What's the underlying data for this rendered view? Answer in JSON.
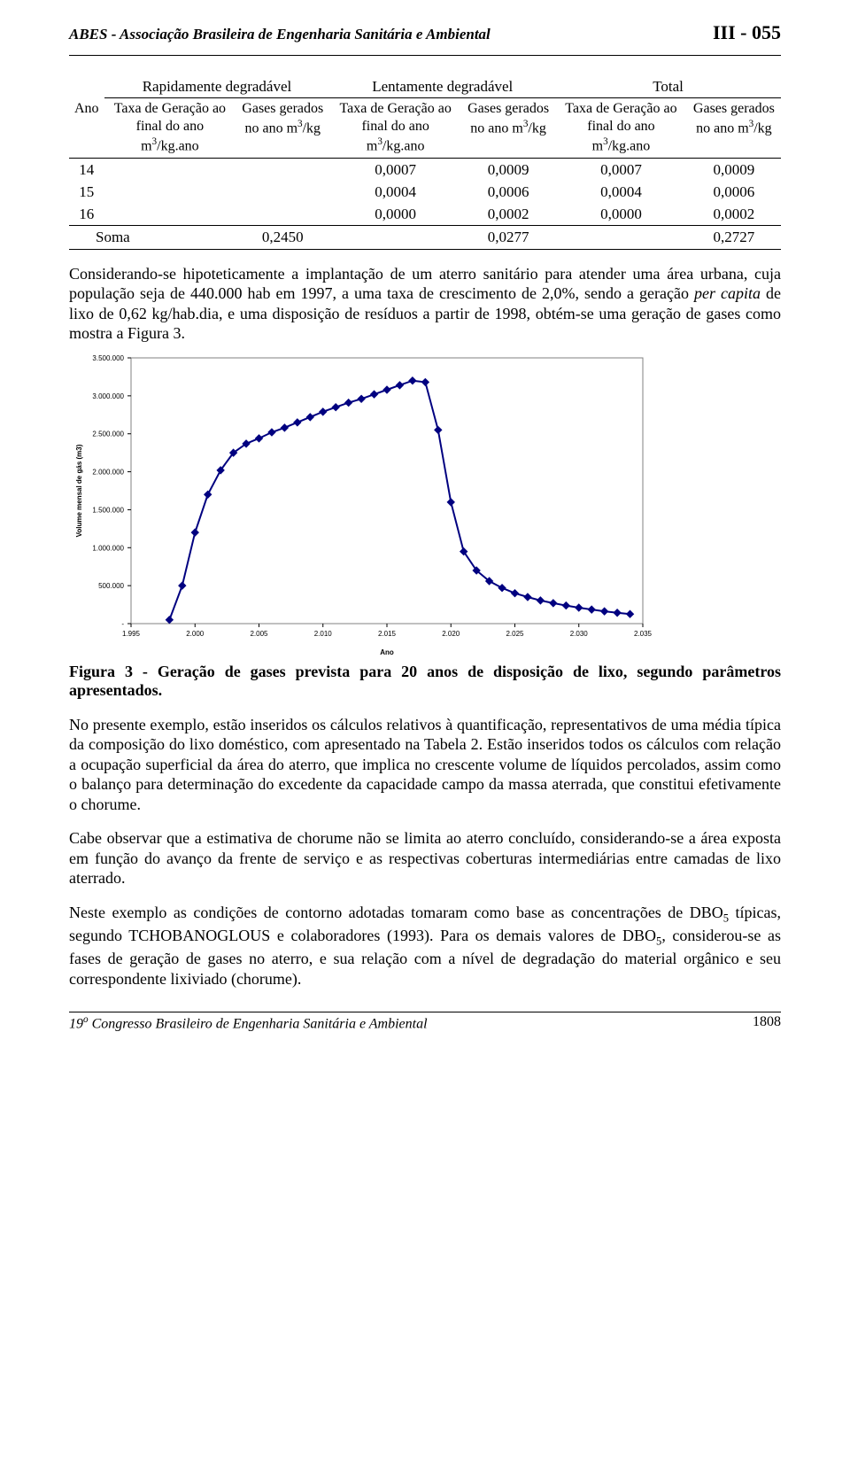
{
  "header": {
    "left": "ABES - Associação Brasileira de Engenharia Sanitária e Ambiental",
    "right": "III - 055"
  },
  "table": {
    "group_headers": [
      "",
      "Rapidamente degradável",
      "Lentamente degradável",
      "Total"
    ],
    "col_headers": {
      "ano": "Ano",
      "taxa_html": "Taxa de Geração ao final do ano m<sup>3</sup>/kg.ano",
      "gases_html": "Gases gerados no ano m<sup>3</sup>/kg",
      "total_gases_html": "Gases gerados no ano m<sup>3</sup>/kg"
    },
    "rows": [
      {
        "ano": "14",
        "r_t": "",
        "r_g": "",
        "l_t": "0,0007",
        "l_g": "0,0009",
        "t_t": "0,0007",
        "t_g": "0,0009"
      },
      {
        "ano": "15",
        "r_t": "",
        "r_g": "",
        "l_t": "0,0004",
        "l_g": "0,0006",
        "t_t": "0,0004",
        "t_g": "0,0006"
      },
      {
        "ano": "16",
        "r_t": "",
        "r_g": "",
        "l_t": "0,0000",
        "l_g": "0,0002",
        "t_t": "0,0000",
        "t_g": "0,0002"
      }
    ],
    "sum": {
      "label": "Soma",
      "r_g": "0,2450",
      "l_g": "0,0277",
      "t_g": "0,2727"
    }
  },
  "para1_html": "Considerando-se hipoteticamente a implantação de um aterro sanitário para atender uma área urbana, cuja população seja de 440.000 hab em 1997, a uma taxa de crescimento de 2,0%, sendo a geração <span class='it'>per capita</span> de lixo de 0,62 kg/hab.dia, e uma disposição de resíduos a partir de 1998, obtém-se uma geração de gases como mostra a Figura 3.",
  "chart": {
    "type": "line",
    "ylabel": "Volume mensal de gás (m3)",
    "xlabel": "Ano",
    "xlim": [
      1995,
      2035
    ],
    "ylim": [
      0,
      3500000
    ],
    "xticks": [
      "1.995",
      "2.000",
      "2.005",
      "2.010",
      "2.015",
      "2.020",
      "2.025",
      "2.030",
      "2.035"
    ],
    "yticks": [
      "-",
      "500.000",
      "1.000.000",
      "1.500.000",
      "2.000.000",
      "2.500.000",
      "3.000.000",
      "3.500.000"
    ],
    "background_color": "#ffffff",
    "plot_border_color": "#808080",
    "tick_color": "#000000",
    "line_color": "#000080",
    "marker_color": "#000080",
    "marker_size": 4,
    "line_width": 2,
    "label_fontsize": 8,
    "tick_fontsize": 8,
    "series": [
      {
        "x": 1998,
        "y": 50000
      },
      {
        "x": 1999,
        "y": 500000
      },
      {
        "x": 2000,
        "y": 1200000
      },
      {
        "x": 2001,
        "y": 1700000
      },
      {
        "x": 2002,
        "y": 2020000
      },
      {
        "x": 2003,
        "y": 2250000
      },
      {
        "x": 2004,
        "y": 2370000
      },
      {
        "x": 2005,
        "y": 2440000
      },
      {
        "x": 2006,
        "y": 2520000
      },
      {
        "x": 2007,
        "y": 2580000
      },
      {
        "x": 2008,
        "y": 2650000
      },
      {
        "x": 2009,
        "y": 2720000
      },
      {
        "x": 2010,
        "y": 2790000
      },
      {
        "x": 2011,
        "y": 2850000
      },
      {
        "x": 2012,
        "y": 2910000
      },
      {
        "x": 2013,
        "y": 2960000
      },
      {
        "x": 2014,
        "y": 3020000
      },
      {
        "x": 2015,
        "y": 3080000
      },
      {
        "x": 2016,
        "y": 3140000
      },
      {
        "x": 2017,
        "y": 3200000
      },
      {
        "x": 2018,
        "y": 3180000
      },
      {
        "x": 2019,
        "y": 2550000
      },
      {
        "x": 2020,
        "y": 1600000
      },
      {
        "x": 2021,
        "y": 950000
      },
      {
        "x": 2022,
        "y": 700000
      },
      {
        "x": 2023,
        "y": 560000
      },
      {
        "x": 2024,
        "y": 470000
      },
      {
        "x": 2025,
        "y": 400000
      },
      {
        "x": 2026,
        "y": 350000
      },
      {
        "x": 2027,
        "y": 305000
      },
      {
        "x": 2028,
        "y": 270000
      },
      {
        "x": 2029,
        "y": 238000
      },
      {
        "x": 2030,
        "y": 210000
      },
      {
        "x": 2031,
        "y": 185000
      },
      {
        "x": 2032,
        "y": 162000
      },
      {
        "x": 2033,
        "y": 143000
      },
      {
        "x": 2034,
        "y": 126000
      }
    ]
  },
  "caption": "Figura 3  -  Geração de gases prevista para 20 anos de disposição de lixo, segundo parâmetros apresentados.",
  "para2": "No presente exemplo, estão inseridos os cálculos relativos à quantificação, representativos de uma média típica da composição do lixo doméstico, com apresentado na Tabela 2. Estão inseridos todos os cálculos com relação a ocupação superficial da área do aterro, que implica no crescente volume de líquidos percolados, assim como o balanço para determinação do excedente da capacidade campo da massa aterrada, que constitui efetivamente o chorume.",
  "para3": "Cabe observar que a estimativa de chorume não se limita ao aterro concluído, considerando-se a área exposta em função do avanço da frente de serviço e as respectivas coberturas intermediárias entre camadas de lixo aterrado.",
  "para4_html": "Neste exemplo as condições de contorno adotadas tomaram como base as concentrações de DBO<sub>5</sub> típicas, segundo TCHOBANOGLOUS e colaboradores (1993). Para os demais valores de DBO<sub>5</sub>, considerou-se as fases de geração de gases no aterro, e sua relação com a nível de degradação do material orgânico e seu correspondente lixiviado (chorume).",
  "footer": {
    "left_html": "19<sup>o</sup> Congresso Brasileiro de Engenharia Sanitária e Ambiental",
    "page": "1808"
  }
}
